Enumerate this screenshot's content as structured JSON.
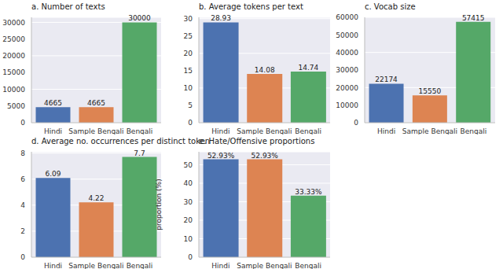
{
  "chart_data": [
    {
      "type": "bar",
      "title": "a. Number of texts",
      "categories": [
        "Hindi",
        "Sample Bengali",
        "Bengali"
      ],
      "values": [
        4665,
        4665,
        30000
      ],
      "colors": [
        "#4c72b0",
        "#dd8452",
        "#55a868"
      ],
      "ylim": [
        0,
        31500
      ],
      "yticks": [
        0,
        5000,
        10000,
        15000,
        20000,
        25000,
        30000
      ],
      "grid": true,
      "data_labels": true
    },
    {
      "type": "bar",
      "title": "b. Average tokens per text",
      "categories": [
        "Hindi",
        "Sample Bengali",
        "Bengali"
      ],
      "values": [
        28.93,
        14.08,
        14.74
      ],
      "colors": [
        "#4c72b0",
        "#dd8452",
        "#55a868"
      ],
      "ylim": [
        0,
        30.4
      ],
      "yticks": [
        0,
        5,
        10,
        15,
        20,
        25,
        30
      ],
      "grid": true,
      "data_labels": true
    },
    {
      "type": "bar",
      "title": "c. Vocab size",
      "categories": [
        "Hindi",
        "Sample Bengali",
        "Bengali"
      ],
      "values": [
        22174,
        15550,
        57415
      ],
      "colors": [
        "#4c72b0",
        "#dd8452",
        "#55a868"
      ],
      "ylim": [
        0,
        60000
      ],
      "yticks": [
        0,
        10000,
        20000,
        30000,
        40000,
        50000,
        60000
      ],
      "grid": true,
      "data_labels": true
    },
    {
      "type": "bar",
      "title": "d. Average no. occurrences per distinct token",
      "categories": [
        "Hindi",
        "Sample Bengali",
        "Bengali"
      ],
      "values": [
        6.09,
        4.22,
        7.7
      ],
      "colors": [
        "#4c72b0",
        "#dd8452",
        "#55a868"
      ],
      "ylim": [
        0,
        8.1
      ],
      "yticks": [
        0,
        2,
        4,
        6,
        8
      ],
      "grid": true,
      "data_labels": true
    },
    {
      "type": "bar",
      "title": "e. Hate/Offensive proportions",
      "ylabel": "proportion (%)",
      "categories": [
        "Hindi",
        "Sample Bengali",
        "Bengali"
      ],
      "values": [
        52.93,
        52.93,
        33.33
      ],
      "value_labels": [
        "52.93%",
        "52.93%",
        "33.33%"
      ],
      "colors": [
        "#4c72b0",
        "#dd8452",
        "#55a868"
      ],
      "ylim": [
        0,
        57
      ],
      "yticks": [
        0,
        10,
        20,
        30,
        40,
        50
      ],
      "grid": true,
      "data_labels": true
    }
  ]
}
